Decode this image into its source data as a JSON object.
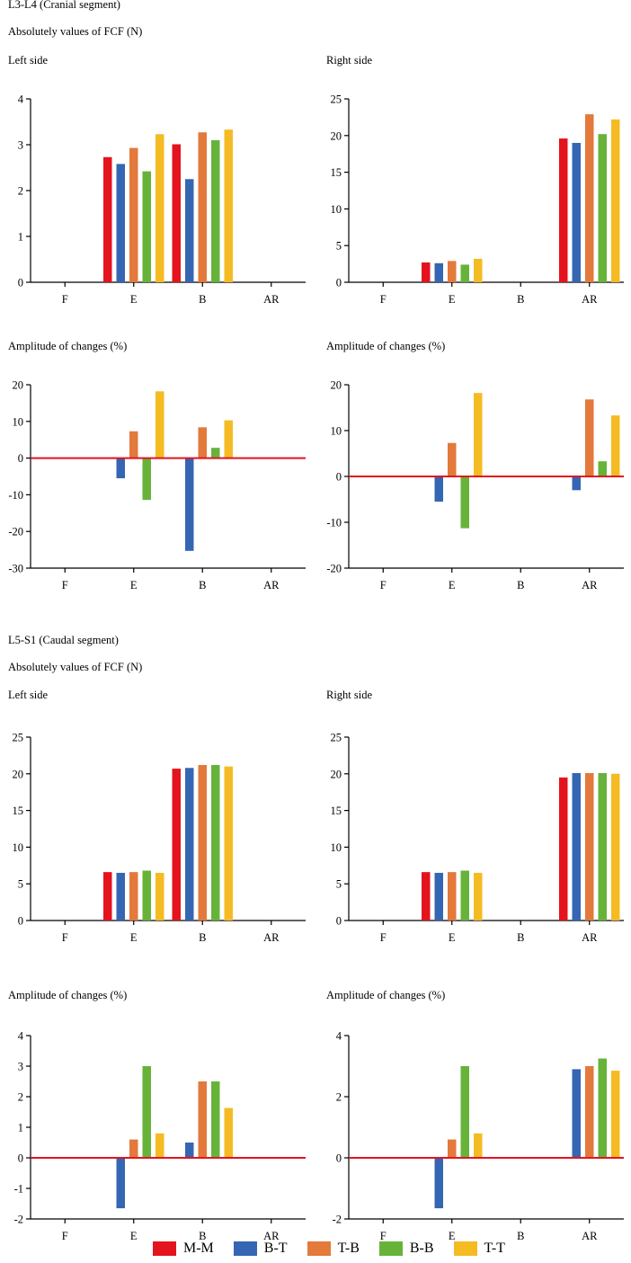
{
  "colors": {
    "M-M": "#e3141e",
    "B-T": "#3566b3",
    "T-B": "#e3793b",
    "B-B": "#67b33a",
    "T-T": "#f4bb23",
    "zero_line": "#e3141e"
  },
  "sections": [
    {
      "title": "L3-L4  (Cranial segment)",
      "abs_title": "Absolutely values of FCF (N)",
      "left_title": "Left side",
      "right_title": "Right side",
      "amp_left_title": "Amplitude of changes (%)",
      "amp_right_title": "Amplitude of changes (%)"
    },
    {
      "title": "L5-S1  (Caudal segment)",
      "abs_title": "Absolutely values of FCF (N)",
      "left_title": "Left side",
      "right_title": "Right side",
      "amp_left_title": "Amplitude of changes (%)",
      "amp_right_title": "Amplitude of changes (%)"
    }
  ],
  "legend": [
    "M-M",
    "B-T",
    "T-B",
    "B-B",
    "T-T"
  ],
  "chart_data": [
    {
      "id": "c1",
      "type": "bar",
      "title": "Left side",
      "ylabel": "Absolutely values of FCF (N)",
      "categories": [
        "F",
        "E",
        "B",
        "AR"
      ],
      "ylim": [
        0,
        4
      ],
      "yticks": [
        0,
        1,
        2,
        3,
        4
      ],
      "series": [
        {
          "name": "M-M",
          "values": [
            null,
            2.73,
            3.01,
            null
          ]
        },
        {
          "name": "B-T",
          "values": [
            null,
            2.58,
            2.25,
            null
          ]
        },
        {
          "name": "T-B",
          "values": [
            null,
            2.93,
            3.27,
            null
          ]
        },
        {
          "name": "B-B",
          "values": [
            null,
            2.42,
            3.1,
            null
          ]
        },
        {
          "name": "T-T",
          "values": [
            null,
            3.23,
            3.33,
            null
          ]
        }
      ]
    },
    {
      "id": "c2",
      "type": "bar",
      "title": "Right side",
      "ylabel": "Absolutely values of FCF (N)",
      "categories": [
        "F",
        "E",
        "B",
        "AR"
      ],
      "ylim": [
        0,
        25
      ],
      "yticks": [
        0,
        5,
        10,
        15,
        20,
        25
      ],
      "series": [
        {
          "name": "M-M",
          "values": [
            null,
            2.7,
            null,
            19.6
          ]
        },
        {
          "name": "B-T",
          "values": [
            null,
            2.6,
            null,
            19.0
          ]
        },
        {
          "name": "T-B",
          "values": [
            null,
            2.9,
            null,
            22.9
          ]
        },
        {
          "name": "B-B",
          "values": [
            null,
            2.4,
            null,
            20.2
          ]
        },
        {
          "name": "T-T",
          "values": [
            null,
            3.2,
            null,
            22.2
          ]
        }
      ]
    },
    {
      "id": "c3",
      "type": "bar",
      "title": "Amplitude of changes (%)",
      "categories": [
        "F",
        "E",
        "B",
        "AR"
      ],
      "ylim": [
        -30,
        20
      ],
      "yticks": [
        -30,
        -20,
        -10,
        0,
        10,
        20
      ],
      "series": [
        {
          "name": "M-M",
          "values": [
            null,
            null,
            null,
            null
          ]
        },
        {
          "name": "B-T",
          "values": [
            null,
            -5.5,
            -25.3,
            null
          ]
        },
        {
          "name": "T-B",
          "values": [
            null,
            7.3,
            8.4,
            null
          ]
        },
        {
          "name": "B-B",
          "values": [
            null,
            -11.4,
            2.8,
            null
          ]
        },
        {
          "name": "T-T",
          "values": [
            null,
            18.2,
            10.3,
            null
          ]
        }
      ]
    },
    {
      "id": "c4",
      "type": "bar",
      "title": "Amplitude of changes (%)",
      "categories": [
        "F",
        "E",
        "B",
        "AR"
      ],
      "ylim": [
        -20,
        20
      ],
      "yticks": [
        -20,
        -10,
        0,
        10,
        20
      ],
      "series": [
        {
          "name": "M-M",
          "values": [
            null,
            null,
            null,
            null
          ]
        },
        {
          "name": "B-T",
          "values": [
            null,
            -5.5,
            null,
            -3.0
          ]
        },
        {
          "name": "T-B",
          "values": [
            null,
            7.3,
            null,
            16.8
          ]
        },
        {
          "name": "B-B",
          "values": [
            null,
            -11.3,
            null,
            3.3
          ]
        },
        {
          "name": "T-T",
          "values": [
            null,
            18.2,
            null,
            13.3
          ]
        }
      ]
    },
    {
      "id": "c5",
      "type": "bar",
      "title": "Left side",
      "ylabel": "Absolutely values of FCF (N)",
      "categories": [
        "F",
        "E",
        "B",
        "AR"
      ],
      "ylim": [
        0,
        25
      ],
      "yticks": [
        0,
        5,
        10,
        15,
        20,
        25
      ],
      "series": [
        {
          "name": "M-M",
          "values": [
            null,
            6.6,
            20.7,
            null
          ]
        },
        {
          "name": "B-T",
          "values": [
            null,
            6.5,
            20.8,
            null
          ]
        },
        {
          "name": "T-B",
          "values": [
            null,
            6.6,
            21.2,
            null
          ]
        },
        {
          "name": "B-B",
          "values": [
            null,
            6.8,
            21.2,
            null
          ]
        },
        {
          "name": "T-T",
          "values": [
            null,
            6.5,
            21.0,
            null
          ]
        }
      ]
    },
    {
      "id": "c6",
      "type": "bar",
      "title": "Right side",
      "ylabel": "Absolutely values of FCF (N)",
      "categories": [
        "F",
        "E",
        "B",
        "AR"
      ],
      "ylim": [
        0,
        25
      ],
      "yticks": [
        0,
        5,
        10,
        15,
        20,
        25
      ],
      "series": [
        {
          "name": "M-M",
          "values": [
            null,
            6.6,
            null,
            19.5
          ]
        },
        {
          "name": "B-T",
          "values": [
            null,
            6.5,
            null,
            20.1
          ]
        },
        {
          "name": "T-B",
          "values": [
            null,
            6.6,
            null,
            20.1
          ]
        },
        {
          "name": "B-B",
          "values": [
            null,
            6.8,
            null,
            20.1
          ]
        },
        {
          "name": "T-T",
          "values": [
            null,
            6.5,
            null,
            20.0
          ]
        }
      ]
    },
    {
      "id": "c7",
      "type": "bar",
      "title": "Amplitude of changes (%)",
      "categories": [
        "F",
        "E",
        "B",
        "AR"
      ],
      "ylim": [
        -2,
        4
      ],
      "yticks": [
        -2,
        -1,
        0,
        1,
        2,
        3,
        4
      ],
      "series": [
        {
          "name": "M-M",
          "values": [
            null,
            null,
            null,
            null
          ]
        },
        {
          "name": "B-T",
          "values": [
            null,
            -1.65,
            0.5,
            null
          ]
        },
        {
          "name": "T-B",
          "values": [
            null,
            0.6,
            2.5,
            null
          ]
        },
        {
          "name": "B-B",
          "values": [
            null,
            3.0,
            2.5,
            null
          ]
        },
        {
          "name": "T-T",
          "values": [
            null,
            0.8,
            1.63,
            null
          ]
        }
      ]
    },
    {
      "id": "c8",
      "type": "bar",
      "title": "Amplitude of changes (%)",
      "categories": [
        "F",
        "E",
        "B",
        "AR"
      ],
      "ylim": [
        -2,
        4
      ],
      "yticks": [
        -2,
        0,
        2,
        4
      ],
      "series": [
        {
          "name": "M-M",
          "values": [
            null,
            null,
            null,
            null
          ]
        },
        {
          "name": "B-T",
          "values": [
            null,
            -1.65,
            null,
            2.9
          ]
        },
        {
          "name": "T-B",
          "values": [
            null,
            0.6,
            null,
            3.0
          ]
        },
        {
          "name": "B-B",
          "values": [
            null,
            3.0,
            null,
            3.25
          ]
        },
        {
          "name": "T-T",
          "values": [
            null,
            0.8,
            null,
            2.85
          ]
        }
      ]
    }
  ]
}
